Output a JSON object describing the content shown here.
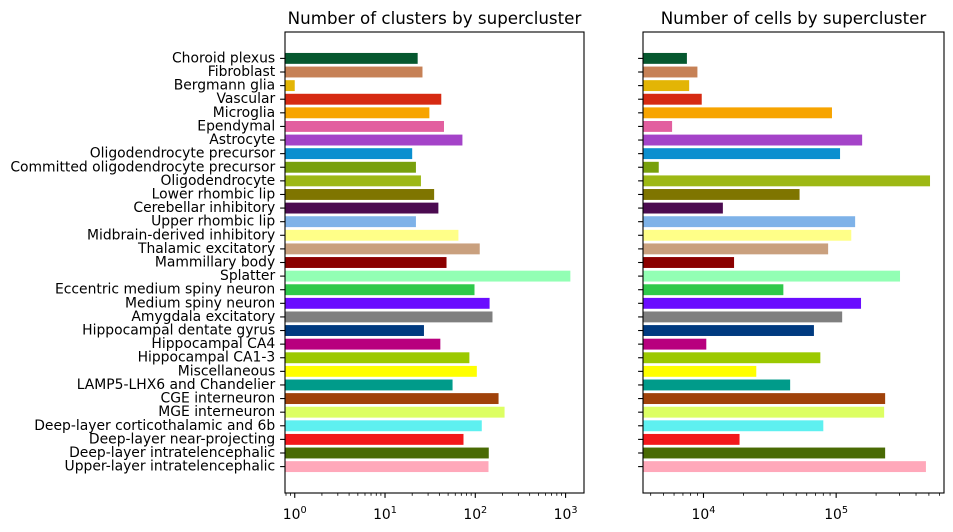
{
  "chart_data": [
    {
      "type": "bar",
      "orientation": "horizontal",
      "title": "Number of clusters by supercluster",
      "xscale": "log",
      "xlim": [
        0.78,
        1600
      ],
      "grid": false,
      "xticks": [
        {
          "value": 1,
          "label_base": "10",
          "label_exp": "0"
        },
        {
          "value": 10,
          "label_base": "10",
          "label_exp": "1"
        },
        {
          "value": 100,
          "label_base": "10",
          "label_exp": "2"
        },
        {
          "value": 1000,
          "label_base": "10",
          "label_exp": "3"
        }
      ],
      "categories": [
        "Choroid plexus",
        "Fibroblast",
        "Bergmann glia",
        "Vascular",
        "Microglia",
        "Ependymal",
        "Astrocyte",
        "Oligodendrocyte precursor",
        "Committed oligodendrocyte precursor",
        "Oligodendrocyte",
        "Lower rhombic lip",
        "Cerebellar inhibitory",
        "Upper rhombic lip",
        "Midbrain-derived inhibitory",
        "Thalamic excitatory",
        "Mammillary body",
        "Splatter",
        "Eccentric medium spiny neuron",
        "Medium spiny neuron",
        "Amygdala excitatory",
        "Hippocampal dentate gyrus",
        "Hippocampal CA4",
        "Hippocampal CA1-3",
        "Miscellaneous",
        "LAMP5-LHX6 and Chandelier",
        "CGE interneuron",
        "MGE interneuron",
        "Deep-layer corticothalamic and 6b",
        "Deep-layer near-projecting",
        "Deep-layer intratelencephalic",
        "Upper-layer intratelencephalic"
      ],
      "values": [
        23,
        26,
        1,
        42,
        31,
        45,
        72,
        20,
        22,
        25,
        35,
        39,
        22,
        65,
        112,
        48,
        1130,
        98,
        144,
        155,
        27,
        41,
        86,
        104,
        56,
        181,
        211,
        118,
        74,
        141,
        140
      ],
      "colors": [
        "#06582f",
        "#c68156",
        "#e3b505",
        "#d62a12",
        "#f7a400",
        "#e25f9f",
        "#a443c8",
        "#0a8fcf",
        "#78a00c",
        "#9db814",
        "#7f7500",
        "#4b0b50",
        "#7eb2e8",
        "#ffff88",
        "#c9a07e",
        "#8b0000",
        "#92ffb4",
        "#2ec94a",
        "#6a0dff",
        "#7f7f7f",
        "#003a80",
        "#b8007e",
        "#9bc900",
        "#ffff00",
        "#009b8a",
        "#a0420a",
        "#ddff63",
        "#5ef0f0",
        "#f2171b",
        "#496a04",
        "#ffa8ba"
      ]
    },
    {
      "type": "bar",
      "orientation": "horizontal",
      "title": "Number of cells by supercluster",
      "xscale": "log",
      "xlim": [
        3500,
        650000
      ],
      "grid": false,
      "sharey": true,
      "xticks": [
        {
          "value": 10000,
          "label_base": "10",
          "label_exp": "4"
        },
        {
          "value": 100000,
          "label_base": "10",
          "label_exp": "5"
        }
      ],
      "categories": [
        "Choroid plexus",
        "Fibroblast",
        "Bergmann glia",
        "Vascular",
        "Microglia",
        "Ependymal",
        "Astrocyte",
        "Oligodendrocyte precursor",
        "Committed oligodendrocyte precursor",
        "Oligodendrocyte",
        "Lower rhombic lip",
        "Cerebellar inhibitory",
        "Upper rhombic lip",
        "Midbrain-derived inhibitory",
        "Thalamic excitatory",
        "Mammillary body",
        "Splatter",
        "Eccentric medium spiny neuron",
        "Medium spiny neuron",
        "Amygdala excitatory",
        "Hippocampal dentate gyrus",
        "Hippocampal CA4",
        "Hippocampal CA1-3",
        "Miscellaneous",
        "LAMP5-LHX6 and Chandelier",
        "CGE interneuron",
        "MGE interneuron",
        "Deep-layer corticothalamic and 6b",
        "Deep-layer near-projecting",
        "Deep-layer intratelencephalic",
        "Upper-layer intratelencephalic"
      ],
      "values": [
        7500,
        9000,
        7800,
        9700,
        93000,
        5800,
        157000,
        107000,
        4600,
        510000,
        53000,
        14000,
        139000,
        130000,
        87000,
        17000,
        303000,
        40000,
        154000,
        111000,
        68000,
        10500,
        76000,
        25000,
        45000,
        234000,
        230000,
        80000,
        18700,
        234000,
        475000
      ],
      "colors": [
        "#06582f",
        "#c68156",
        "#e3b505",
        "#d62a12",
        "#f7a400",
        "#e25f9f",
        "#a443c8",
        "#0a8fcf",
        "#78a00c",
        "#9db814",
        "#7f7500",
        "#4b0b50",
        "#7eb2e8",
        "#ffff88",
        "#c9a07e",
        "#8b0000",
        "#92ffb4",
        "#2ec94a",
        "#6a0dff",
        "#7f7f7f",
        "#003a80",
        "#b8007e",
        "#9bc900",
        "#ffff00",
        "#009b8a",
        "#a0420a",
        "#ddff63",
        "#5ef0f0",
        "#f2171b",
        "#496a04",
        "#ffa8ba"
      ]
    }
  ]
}
